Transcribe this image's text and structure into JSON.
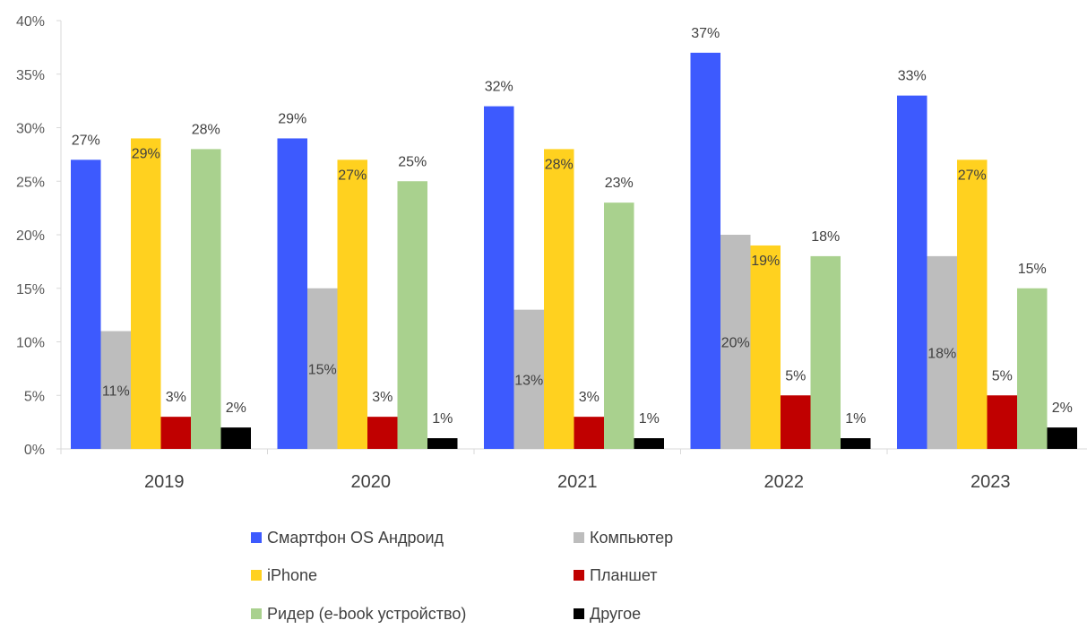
{
  "chart_data": {
    "type": "bar",
    "categories": [
      "2019",
      "2020",
      "2021",
      "2022",
      "2023"
    ],
    "series": [
      {
        "name": "Смартфон OS Андроид",
        "color": "#3D5AFE",
        "values": [
          27,
          29,
          32,
          37,
          33
        ],
        "labels": [
          "27%",
          "29%",
          "32%",
          "37%",
          "33%"
        ]
      },
      {
        "name": "Компьютер",
        "color": "#BDBDBD",
        "values": [
          11,
          15,
          13,
          20,
          18
        ],
        "labels": [
          "11%",
          "15%",
          "13%",
          "20%",
          "18%"
        ]
      },
      {
        "name": "iPhone",
        "color": "#FFD11F",
        "values": [
          29,
          27,
          28,
          19,
          27
        ],
        "labels": [
          "29%",
          "27%",
          "28%",
          "19%",
          "27%"
        ]
      },
      {
        "name": "Планшет",
        "color": "#C00000",
        "values": [
          3,
          3,
          3,
          5,
          5
        ],
        "labels": [
          "3%",
          "3%",
          "3%",
          "5%",
          "5%"
        ]
      },
      {
        "name": "Ридер (e-book устройство)",
        "color": "#A9D18E",
        "values": [
          28,
          25,
          23,
          18,
          15
        ],
        "labels": [
          "28%",
          "25%",
          "23%",
          "18%",
          "15%"
        ]
      },
      {
        "name": "Другое",
        "color": "#000000",
        "values": [
          2,
          1,
          1,
          1,
          2
        ],
        "labels": [
          "2%",
          "1%",
          "1%",
          "1%",
          "2%"
        ]
      }
    ],
    "ylim": [
      0,
      40
    ],
    "yticks": [
      0,
      5,
      10,
      15,
      20,
      25,
      30,
      35,
      40
    ],
    "ytick_labels": [
      "0%",
      "5%",
      "10%",
      "15%",
      "20%",
      "25%",
      "30%",
      "35%",
      "40%"
    ],
    "grid": false,
    "legend_position": "bottom"
  }
}
